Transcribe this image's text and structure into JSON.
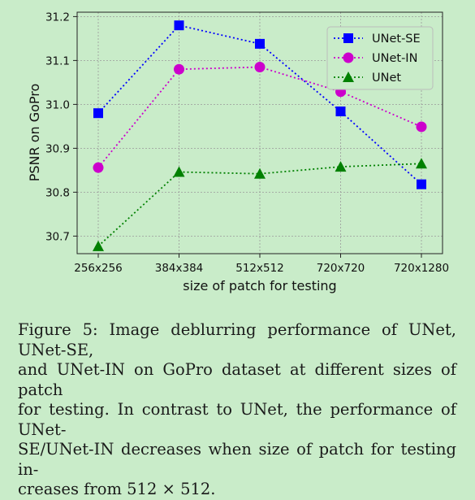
{
  "chart_data": {
    "type": "line",
    "xlabel": "size of patch for testing",
    "ylabel": "PSNR on GoPro",
    "categories": [
      "256x256",
      "384x384",
      "512x512",
      "720x720",
      "720x1280"
    ],
    "ylim": [
      30.66,
      31.21
    ],
    "yticks": [
      30.7,
      30.8,
      30.9,
      31.0,
      31.1,
      31.2
    ],
    "ytick_labels": [
      "30.7",
      "30.8",
      "30.9",
      "31.0",
      "31.1",
      "31.2"
    ],
    "grid": true,
    "legend_position": "top-right",
    "series": [
      {
        "name": "UNet-SE",
        "values": [
          30.98,
          31.18,
          31.138,
          30.984,
          30.818
        ],
        "color": "#0000ff",
        "marker": "square"
      },
      {
        "name": "UNet-IN",
        "values": [
          30.856,
          31.08,
          31.085,
          31.029,
          30.949
        ],
        "color": "#cc00cc",
        "marker": "circle"
      },
      {
        "name": "UNet",
        "values": [
          30.677,
          30.846,
          30.842,
          30.858,
          30.865
        ],
        "color": "#008000",
        "marker": "triangle"
      }
    ]
  },
  "caption": {
    "lines": [
      "Figure 5: Image deblurring performance of UNet, UNet-SE,",
      "and UNet-IN on GoPro dataset at different sizes of patch",
      "for testing. In contrast to UNet, the performance of UNet-",
      "SE/UNet-IN decreases when size of patch for testing in-",
      "creases from 512 × 512."
    ]
  }
}
